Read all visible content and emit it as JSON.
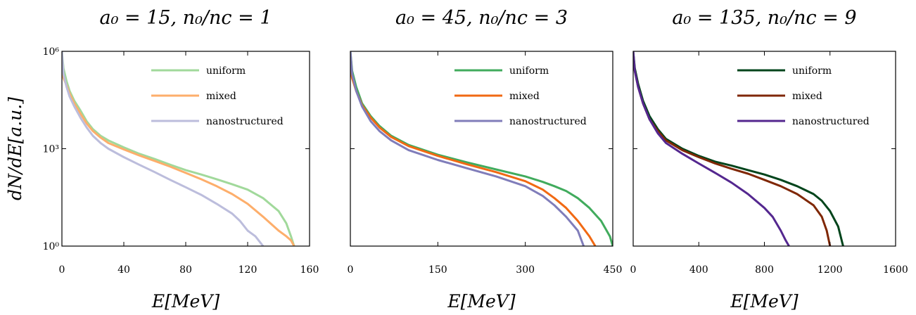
{
  "chart_data": [
    {
      "type": "line",
      "title": "a₀ = 15, n₀/nc = 1",
      "xlabel": "E[MeV]",
      "ylabel": "dN/dE[a.u.]",
      "xlim": [
        0,
        160
      ],
      "ylim": [
        1,
        1000000
      ],
      "yscale": "log",
      "xticks": [
        0,
        40,
        80,
        120,
        160
      ],
      "yticks": [
        1,
        1000,
        1000000
      ],
      "ytick_labels": [
        "10⁰",
        "10³",
        "10⁶"
      ],
      "legend": "top-right",
      "grid": false,
      "series": [
        {
          "name": "uniform",
          "color": "#a1d99b",
          "x": [
            0,
            1,
            3,
            5,
            8,
            12,
            16,
            20,
            25,
            30,
            40,
            50,
            60,
            70,
            80,
            90,
            100,
            110,
            120,
            130,
            140,
            145,
            148,
            150
          ],
          "y": [
            1000000,
            300000,
            120000,
            60000,
            30000,
            15000,
            7000,
            4000,
            2500,
            1800,
            1100,
            700,
            480,
            320,
            220,
            160,
            115,
            80,
            55,
            30,
            12,
            5,
            2,
            1
          ]
        },
        {
          "name": "mixed",
          "color": "#fdae6b",
          "x": [
            0,
            1,
            3,
            5,
            8,
            12,
            16,
            20,
            25,
            30,
            40,
            50,
            60,
            70,
            80,
            90,
            100,
            110,
            120,
            130,
            140,
            145,
            148,
            150
          ],
          "y": [
            300000,
            150000,
            90000,
            50000,
            25000,
            12000,
            6000,
            3500,
            2200,
            1500,
            950,
            620,
            420,
            280,
            180,
            115,
            70,
            40,
            20,
            8,
            3,
            2,
            1.5,
            1
          ]
        },
        {
          "name": "nanostructured",
          "color": "#bcbddc",
          "x": [
            0,
            1,
            3,
            5,
            8,
            12,
            16,
            20,
            25,
            30,
            40,
            50,
            60,
            70,
            80,
            90,
            100,
            110,
            115,
            120,
            125,
            130
          ],
          "y": [
            1000000,
            200000,
            80000,
            40000,
            20000,
            9000,
            4500,
            2500,
            1500,
            1000,
            550,
            320,
            190,
            110,
            65,
            38,
            20,
            10,
            6,
            3,
            2,
            1
          ]
        }
      ]
    },
    {
      "type": "line",
      "title": "a₀ = 45, n₀/nc = 3",
      "xlabel": "E[MeV]",
      "xlim": [
        0,
        450
      ],
      "ylim": [
        1,
        1000000
      ],
      "yscale": "log",
      "xticks": [
        0,
        150,
        300,
        450
      ],
      "legend": "top-right",
      "grid": false,
      "series": [
        {
          "name": "uniform",
          "color": "#41ab5d",
          "x": [
            0,
            3,
            10,
            20,
            35,
            50,
            70,
            100,
            150,
            200,
            250,
            300,
            330,
            350,
            370,
            390,
            410,
            430,
            445,
            450
          ],
          "y": [
            1000000,
            250000,
            80000,
            25000,
            10000,
            5000,
            2500,
            1300,
            650,
            380,
            230,
            140,
            95,
            70,
            50,
            30,
            15,
            6,
            2,
            1
          ]
        },
        {
          "name": "mixed",
          "color": "#f16913",
          "x": [
            0,
            3,
            10,
            20,
            35,
            50,
            70,
            100,
            150,
            200,
            250,
            300,
            330,
            350,
            370,
            390,
            410,
            420
          ],
          "y": [
            300000,
            150000,
            60000,
            22000,
            9000,
            4500,
            2300,
            1200,
            600,
            330,
            190,
            100,
            55,
            30,
            15,
            6,
            2,
            1
          ]
        },
        {
          "name": "nanostructured",
          "color": "#807dba",
          "x": [
            0,
            3,
            10,
            20,
            35,
            50,
            70,
            100,
            150,
            200,
            250,
            300,
            330,
            350,
            370,
            390,
            400
          ],
          "y": [
            1000000,
            200000,
            60000,
            20000,
            7000,
            3500,
            1800,
            900,
            450,
            250,
            140,
            70,
            35,
            18,
            8,
            3,
            1
          ]
        }
      ]
    },
    {
      "type": "line",
      "title": "a₀ = 135, n₀/nc = 9",
      "xlabel": "E[MeV]",
      "xlim": [
        0,
        1600
      ],
      "ylim": [
        1,
        1000000
      ],
      "yscale": "log",
      "xticks": [
        0,
        400,
        800,
        1200,
        1600
      ],
      "legend": "top-right",
      "grid": false,
      "series": [
        {
          "name": "uniform",
          "color": "#00441b",
          "x": [
            0,
            10,
            30,
            60,
            100,
            150,
            200,
            300,
            400,
            500,
            600,
            700,
            800,
            900,
            1000,
            1100,
            1150,
            1200,
            1250,
            1280
          ],
          "y": [
            1000000,
            300000,
            100000,
            30000,
            10000,
            4000,
            2000,
            1000,
            600,
            400,
            300,
            220,
            160,
            110,
            70,
            40,
            25,
            12,
            4,
            1
          ]
        },
        {
          "name": "mixed",
          "color": "#7f2704",
          "x": [
            0,
            10,
            30,
            60,
            100,
            150,
            200,
            300,
            400,
            500,
            600,
            700,
            800,
            900,
            1000,
            1100,
            1150,
            1180,
            1200
          ],
          "y": [
            800000,
            250000,
            80000,
            25000,
            8000,
            3500,
            1800,
            900,
            550,
            350,
            240,
            170,
            110,
            70,
            40,
            18,
            8,
            3,
            1
          ]
        },
        {
          "name": "nanostructured",
          "color": "#54278f",
          "x": [
            0,
            10,
            30,
            60,
            100,
            150,
            200,
            300,
            400,
            500,
            600,
            700,
            800,
            850,
            900,
            930,
            950
          ],
          "y": [
            1000000,
            250000,
            80000,
            25000,
            8000,
            3000,
            1500,
            700,
            350,
            180,
            90,
            40,
            15,
            8,
            3,
            1.5,
            1
          ]
        }
      ]
    }
  ]
}
